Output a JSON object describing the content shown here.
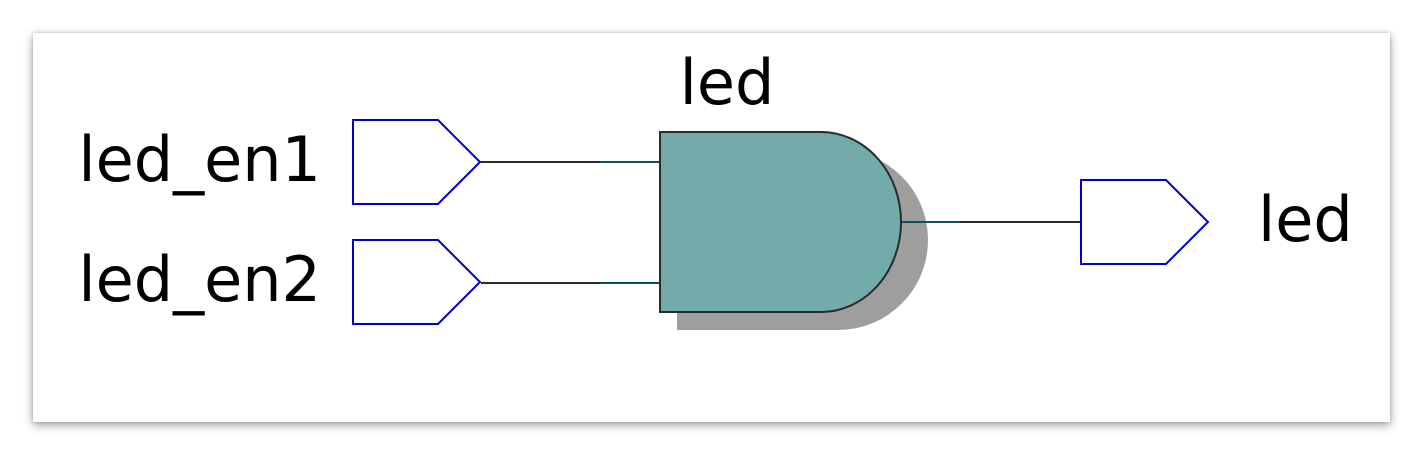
{
  "schematic": {
    "gate_label": "led",
    "gate_type": "and-gate",
    "inputs": [
      {
        "label": "led_en1"
      },
      {
        "label": "led_en2"
      }
    ],
    "output": {
      "label": "led"
    }
  },
  "colors": {
    "gate_fill": "#73abab",
    "gate_shadow": "#9e9e9e",
    "port_stroke": "#0000c8",
    "wire": "#2b2b2b",
    "wire_gate_end": "#134c5c"
  }
}
